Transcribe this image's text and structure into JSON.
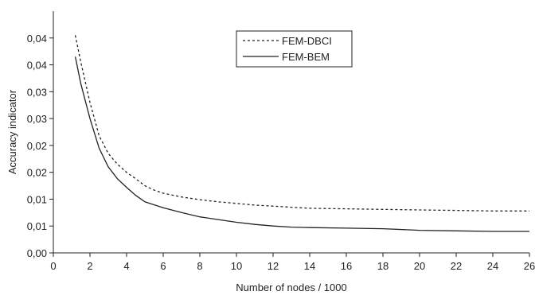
{
  "chart_data": {
    "type": "line",
    "title": "",
    "xlabel": "Number of nodes / 1000",
    "ylabel": "Accuracy indicator",
    "xlim": [
      0,
      26
    ],
    "ylim": [
      0,
      0.045
    ],
    "x_ticks": [
      {
        "value": 0,
        "label": "0"
      },
      {
        "value": 2,
        "label": "2"
      },
      {
        "value": 4,
        "label": "4"
      },
      {
        "value": 6,
        "label": "6"
      },
      {
        "value": 8,
        "label": "8"
      },
      {
        "value": 10,
        "label": "10"
      },
      {
        "value": 12,
        "label": "12"
      },
      {
        "value": 14,
        "label": "14"
      },
      {
        "value": 16,
        "label": "16"
      },
      {
        "value": 18,
        "label": "18"
      },
      {
        "value": 20,
        "label": "20"
      },
      {
        "value": 22,
        "label": "22"
      },
      {
        "value": 24,
        "label": "24"
      },
      {
        "value": 26,
        "label": "26"
      }
    ],
    "y_ticks": [
      {
        "value": 0,
        "label": "0,00"
      },
      {
        "value": 0.005,
        "label": "0,01"
      },
      {
        "value": 0.01,
        "label": "0,01"
      },
      {
        "value": 0.015,
        "label": "0,02"
      },
      {
        "value": 0.02,
        "label": "0,02"
      },
      {
        "value": 0.025,
        "label": "0,03"
      },
      {
        "value": 0.03,
        "label": "0,03"
      },
      {
        "value": 0.035,
        "label": "0,04"
      },
      {
        "value": 0.04,
        "label": "0,04"
      }
    ],
    "grid": false,
    "legend_position": "top-center",
    "series": [
      {
        "name": "FEM-DBCI",
        "style": "dashed",
        "color": "#222222",
        "points": [
          [
            1.2,
            0.0405
          ],
          [
            1.5,
            0.0355
          ],
          [
            2.0,
            0.028
          ],
          [
            2.5,
            0.0218
          ],
          [
            3.0,
            0.0185
          ],
          [
            3.5,
            0.0165
          ],
          [
            4.0,
            0.015
          ],
          [
            4.5,
            0.0138
          ],
          [
            5.0,
            0.0125
          ],
          [
            5.5,
            0.0117
          ],
          [
            6.0,
            0.0111
          ],
          [
            7.0,
            0.0104
          ],
          [
            8.0,
            0.0099
          ],
          [
            9.0,
            0.0095
          ],
          [
            10.0,
            0.0092
          ],
          [
            11.0,
            0.0089
          ],
          [
            12.0,
            0.0087
          ],
          [
            13.0,
            0.0085
          ],
          [
            14.0,
            0.0083
          ],
          [
            16.0,
            0.0082
          ],
          [
            18.0,
            0.0081
          ],
          [
            20.0,
            0.008
          ],
          [
            22.0,
            0.0079
          ],
          [
            24.0,
            0.0078
          ],
          [
            26.0,
            0.0078
          ]
        ]
      },
      {
        "name": "FEM-BEM",
        "style": "solid",
        "color": "#222222",
        "points": [
          [
            1.2,
            0.0365
          ],
          [
            1.5,
            0.0315
          ],
          [
            2.0,
            0.025
          ],
          [
            2.5,
            0.0195
          ],
          [
            3.0,
            0.016
          ],
          [
            3.5,
            0.0138
          ],
          [
            4.0,
            0.0122
          ],
          [
            4.5,
            0.0107
          ],
          [
            5.0,
            0.0095
          ],
          [
            6.0,
            0.0084
          ],
          [
            7.0,
            0.0075
          ],
          [
            8.0,
            0.0067
          ],
          [
            9.0,
            0.0062
          ],
          [
            10.0,
            0.0057
          ],
          [
            11.0,
            0.0053
          ],
          [
            12.0,
            0.005
          ],
          [
            13.0,
            0.0048
          ],
          [
            14.0,
            0.0047
          ],
          [
            16.0,
            0.0046
          ],
          [
            18.0,
            0.0045
          ],
          [
            20.0,
            0.0042
          ],
          [
            22.0,
            0.0041
          ],
          [
            24.0,
            0.004
          ],
          [
            26.0,
            0.004
          ]
        ]
      }
    ]
  }
}
